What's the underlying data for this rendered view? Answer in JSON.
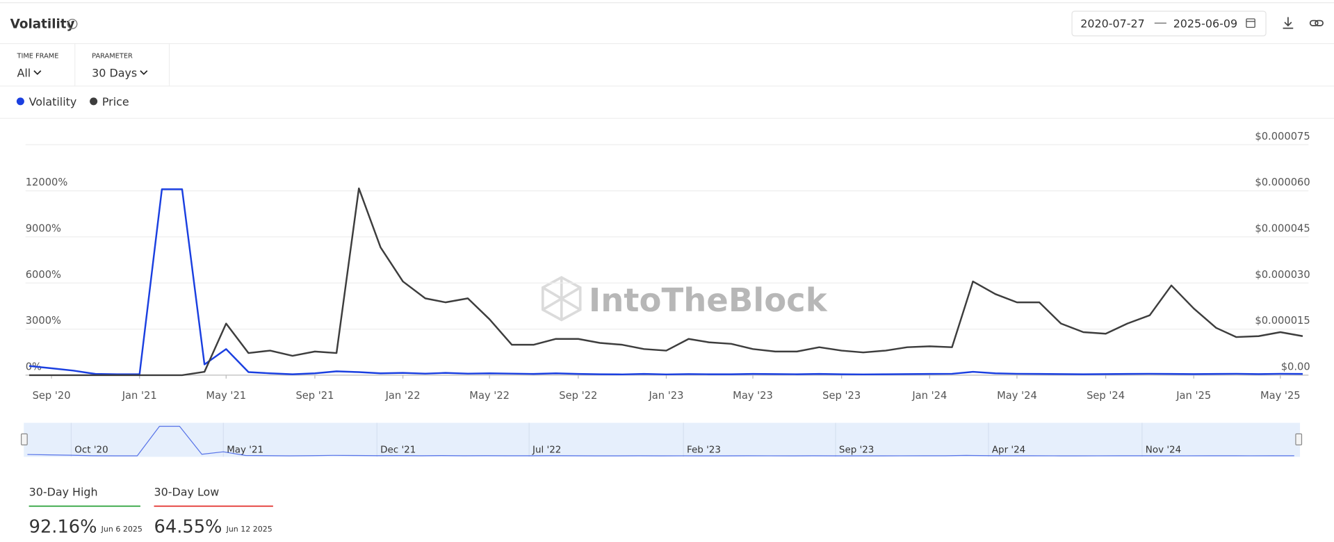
{
  "header": {
    "title": "Volatility"
  },
  "filters": {
    "time_frame": {
      "label": "TIME FRAME",
      "value": "All"
    },
    "parameter": {
      "label": "PARAMETER",
      "value": "30 Days"
    }
  },
  "watermark": "IntoTheBlock",
  "chart_data": {
    "type": "line",
    "xlim": [
      "2020-07-27",
      "2025-06-09"
    ],
    "x": [
      "2020-08",
      "2020-09",
      "2020-10",
      "2020-11",
      "2020-12",
      "2021-01",
      "2021-02",
      "2021-03",
      "2021-04",
      "2021-05",
      "2021-06",
      "2021-07",
      "2021-08",
      "2021-09",
      "2021-10",
      "2021-11",
      "2021-12",
      "2022-01",
      "2022-02",
      "2022-03",
      "2022-04",
      "2022-05",
      "2022-06",
      "2022-07",
      "2022-08",
      "2022-09",
      "2022-10",
      "2022-11",
      "2022-12",
      "2023-01",
      "2023-02",
      "2023-03",
      "2023-04",
      "2023-05",
      "2023-06",
      "2023-07",
      "2023-08",
      "2023-09",
      "2023-10",
      "2023-11",
      "2023-12",
      "2024-01",
      "2024-02",
      "2024-03",
      "2024-04",
      "2024-05",
      "2024-06",
      "2024-07",
      "2024-08",
      "2024-09",
      "2024-10",
      "2024-11",
      "2024-12",
      "2025-01",
      "2025-02",
      "2025-03",
      "2025-04",
      "2025-05",
      "2025-06"
    ],
    "xticks": [
      {
        "value": "2020-09",
        "label": "Sep '20"
      },
      {
        "value": "2021-01",
        "label": "Jan '21"
      },
      {
        "value": "2021-05",
        "label": "May '21"
      },
      {
        "value": "2021-09",
        "label": "Sep '21"
      },
      {
        "value": "2022-01",
        "label": "Jan '22"
      },
      {
        "value": "2022-05",
        "label": "May '22"
      },
      {
        "value": "2022-09",
        "label": "Sep '22"
      },
      {
        "value": "2023-01",
        "label": "Jan '23"
      },
      {
        "value": "2023-05",
        "label": "May '23"
      },
      {
        "value": "2023-09",
        "label": "Sep '23"
      },
      {
        "value": "2024-01",
        "label": "Jan '24"
      },
      {
        "value": "2024-05",
        "label": "May '24"
      },
      {
        "value": "2024-09",
        "label": "Sep '24"
      },
      {
        "value": "2025-01",
        "label": "Jan '25"
      },
      {
        "value": "2025-05",
        "label": "May '25"
      }
    ],
    "ylim": [
      0,
      15000
    ],
    "yticks": [
      {
        "value": 0,
        "label": "0%"
      },
      {
        "value": 3000,
        "label": "3000%"
      },
      {
        "value": 6000,
        "label": "6000%"
      },
      {
        "value": 9000,
        "label": "9000%"
      },
      {
        "value": 12000,
        "label": "12000%"
      }
    ],
    "y2lim": [
      0,
      7.5e-05
    ],
    "y2ticks": [
      {
        "value": 0,
        "label": "$0.00"
      },
      {
        "value": 1.5e-05,
        "label": "$0.000015"
      },
      {
        "value": 3e-05,
        "label": "$0.000030"
      },
      {
        "value": 4.5e-05,
        "label": "$0.000045"
      },
      {
        "value": 6e-05,
        "label": "$0.000060"
      },
      {
        "value": 7.5e-05,
        "label": "$0.000075"
      }
    ],
    "grid": true,
    "series": [
      {
        "name": "Volatility",
        "color": "#1a3fe0",
        "values": [
          600,
          450,
          300,
          80,
          60,
          60,
          12100,
          12100,
          700,
          1700,
          200,
          120,
          60,
          120,
          250,
          200,
          120,
          150,
          100,
          150,
          100,
          120,
          100,
          80,
          120,
          80,
          60,
          50,
          80,
          50,
          70,
          60,
          60,
          80,
          70,
          60,
          80,
          60,
          50,
          60,
          70,
          80,
          90,
          220,
          120,
          90,
          80,
          70,
          60,
          70,
          80,
          90,
          80,
          70,
          80,
          90,
          70,
          90,
          80
        ]
      },
      {
        "name": "Price",
        "color": "#3d3d3d",
        "axis": "y2",
        "values": [
          0,
          0,
          0,
          0,
          0,
          0,
          0,
          0,
          1.1e-06,
          1.68e-05,
          7.2e-06,
          8e-06,
          6.3e-06,
          7.7e-06,
          7.2e-06,
          6.08e-05,
          4.16e-05,
          3.05e-05,
          2.5e-05,
          2.37e-05,
          2.5e-05,
          1.82e-05,
          9.9e-06,
          9.9e-06,
          1.18e-05,
          1.18e-05,
          1.05e-05,
          9.9e-06,
          8.5e-06,
          8e-06,
          1.18e-05,
          1.07e-05,
          1.02e-05,
          8.5e-06,
          7.7e-06,
          7.7e-06,
          9.1e-06,
          8e-06,
          7.4e-06,
          8e-06,
          9.1e-06,
          9.4e-06,
          9.1e-06,
          3.05e-05,
          2.64e-05,
          2.37e-05,
          2.37e-05,
          1.68e-05,
          1.4e-05,
          1.35e-05,
          1.68e-05,
          1.95e-05,
          2.92e-05,
          2.17e-05,
          1.54e-05,
          1.24e-05,
          1.27e-05,
          1.4e-05,
          1.27e-05
        ]
      }
    ]
  },
  "navigator": {
    "ticks": [
      {
        "value": "2020-10",
        "label": "Oct '20"
      },
      {
        "value": "2021-05",
        "label": "May '21"
      },
      {
        "value": "2021-12",
        "label": "Dec '21"
      },
      {
        "value": "2022-07",
        "label": "Jul '22"
      },
      {
        "value": "2023-02",
        "label": "Feb '23"
      },
      {
        "value": "2023-09",
        "label": "Sep '23"
      },
      {
        "value": "2024-04",
        "label": "Apr '24"
      },
      {
        "value": "2024-11",
        "label": "Nov '24"
      }
    ]
  },
  "stats": [
    {
      "label": "30-Day High",
      "value": "92.16%",
      "date": "Jun 6 2025",
      "color": "#1a9a2a"
    },
    {
      "label": "30-Day Low",
      "value": "64.55%",
      "date": "Jun 12 2025",
      "color": "#e0201c"
    }
  ]
}
